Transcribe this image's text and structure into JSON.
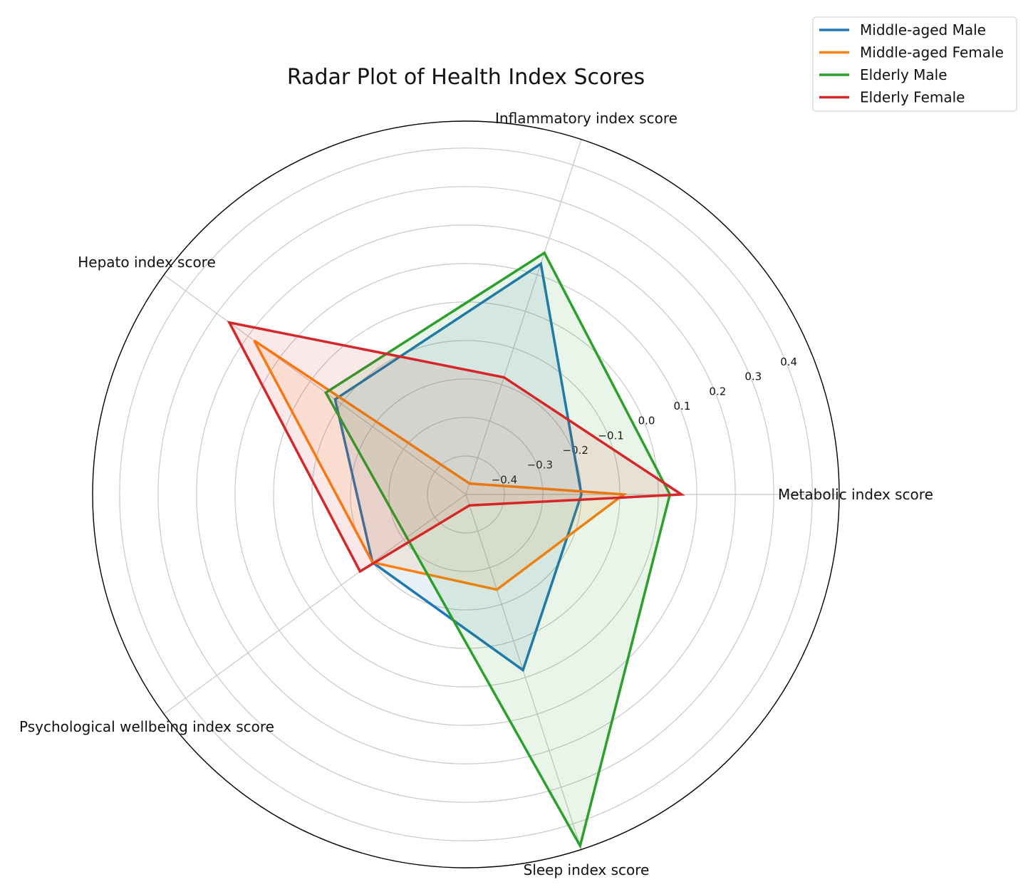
{
  "chart_data": {
    "type": "radar",
    "title": "Radar Plot of Health Index Scores",
    "axes": [
      "Metabolic index score",
      "Inflammatory index score",
      "Hepato index score",
      "Psychological wellbeing index score",
      "Sleep index score"
    ],
    "rlim": [
      -0.5,
      0.47
    ],
    "rticks": [
      -0.4,
      -0.3,
      -0.2,
      -0.1,
      0.0,
      0.1,
      0.2,
      0.3,
      0.4
    ],
    "rtick_labels": [
      "−0.4",
      "−0.3",
      "−0.2",
      "−0.1",
      "0.0",
      "0.1",
      "0.2",
      "0.3",
      "0.4"
    ],
    "grid": true,
    "legend_position": "top-right",
    "series": [
      {
        "name": "Middle-aged Male",
        "color": "#1f77b4",
        "values": [
          -0.2,
          0.13,
          -0.08,
          -0.2,
          -0.02
        ]
      },
      {
        "name": "Middle-aged Female",
        "color": "#ff7f0e",
        "values": [
          -0.09,
          -0.47,
          0.18,
          -0.2,
          -0.24
        ]
      },
      {
        "name": "Elderly Male",
        "color": "#2ca02c",
        "values": [
          0.03,
          0.16,
          -0.05,
          -0.31,
          0.46
        ]
      },
      {
        "name": "Elderly Female",
        "color": "#d62728",
        "values": [
          0.06,
          -0.18,
          0.26,
          -0.16,
          -0.47
        ]
      }
    ]
  }
}
